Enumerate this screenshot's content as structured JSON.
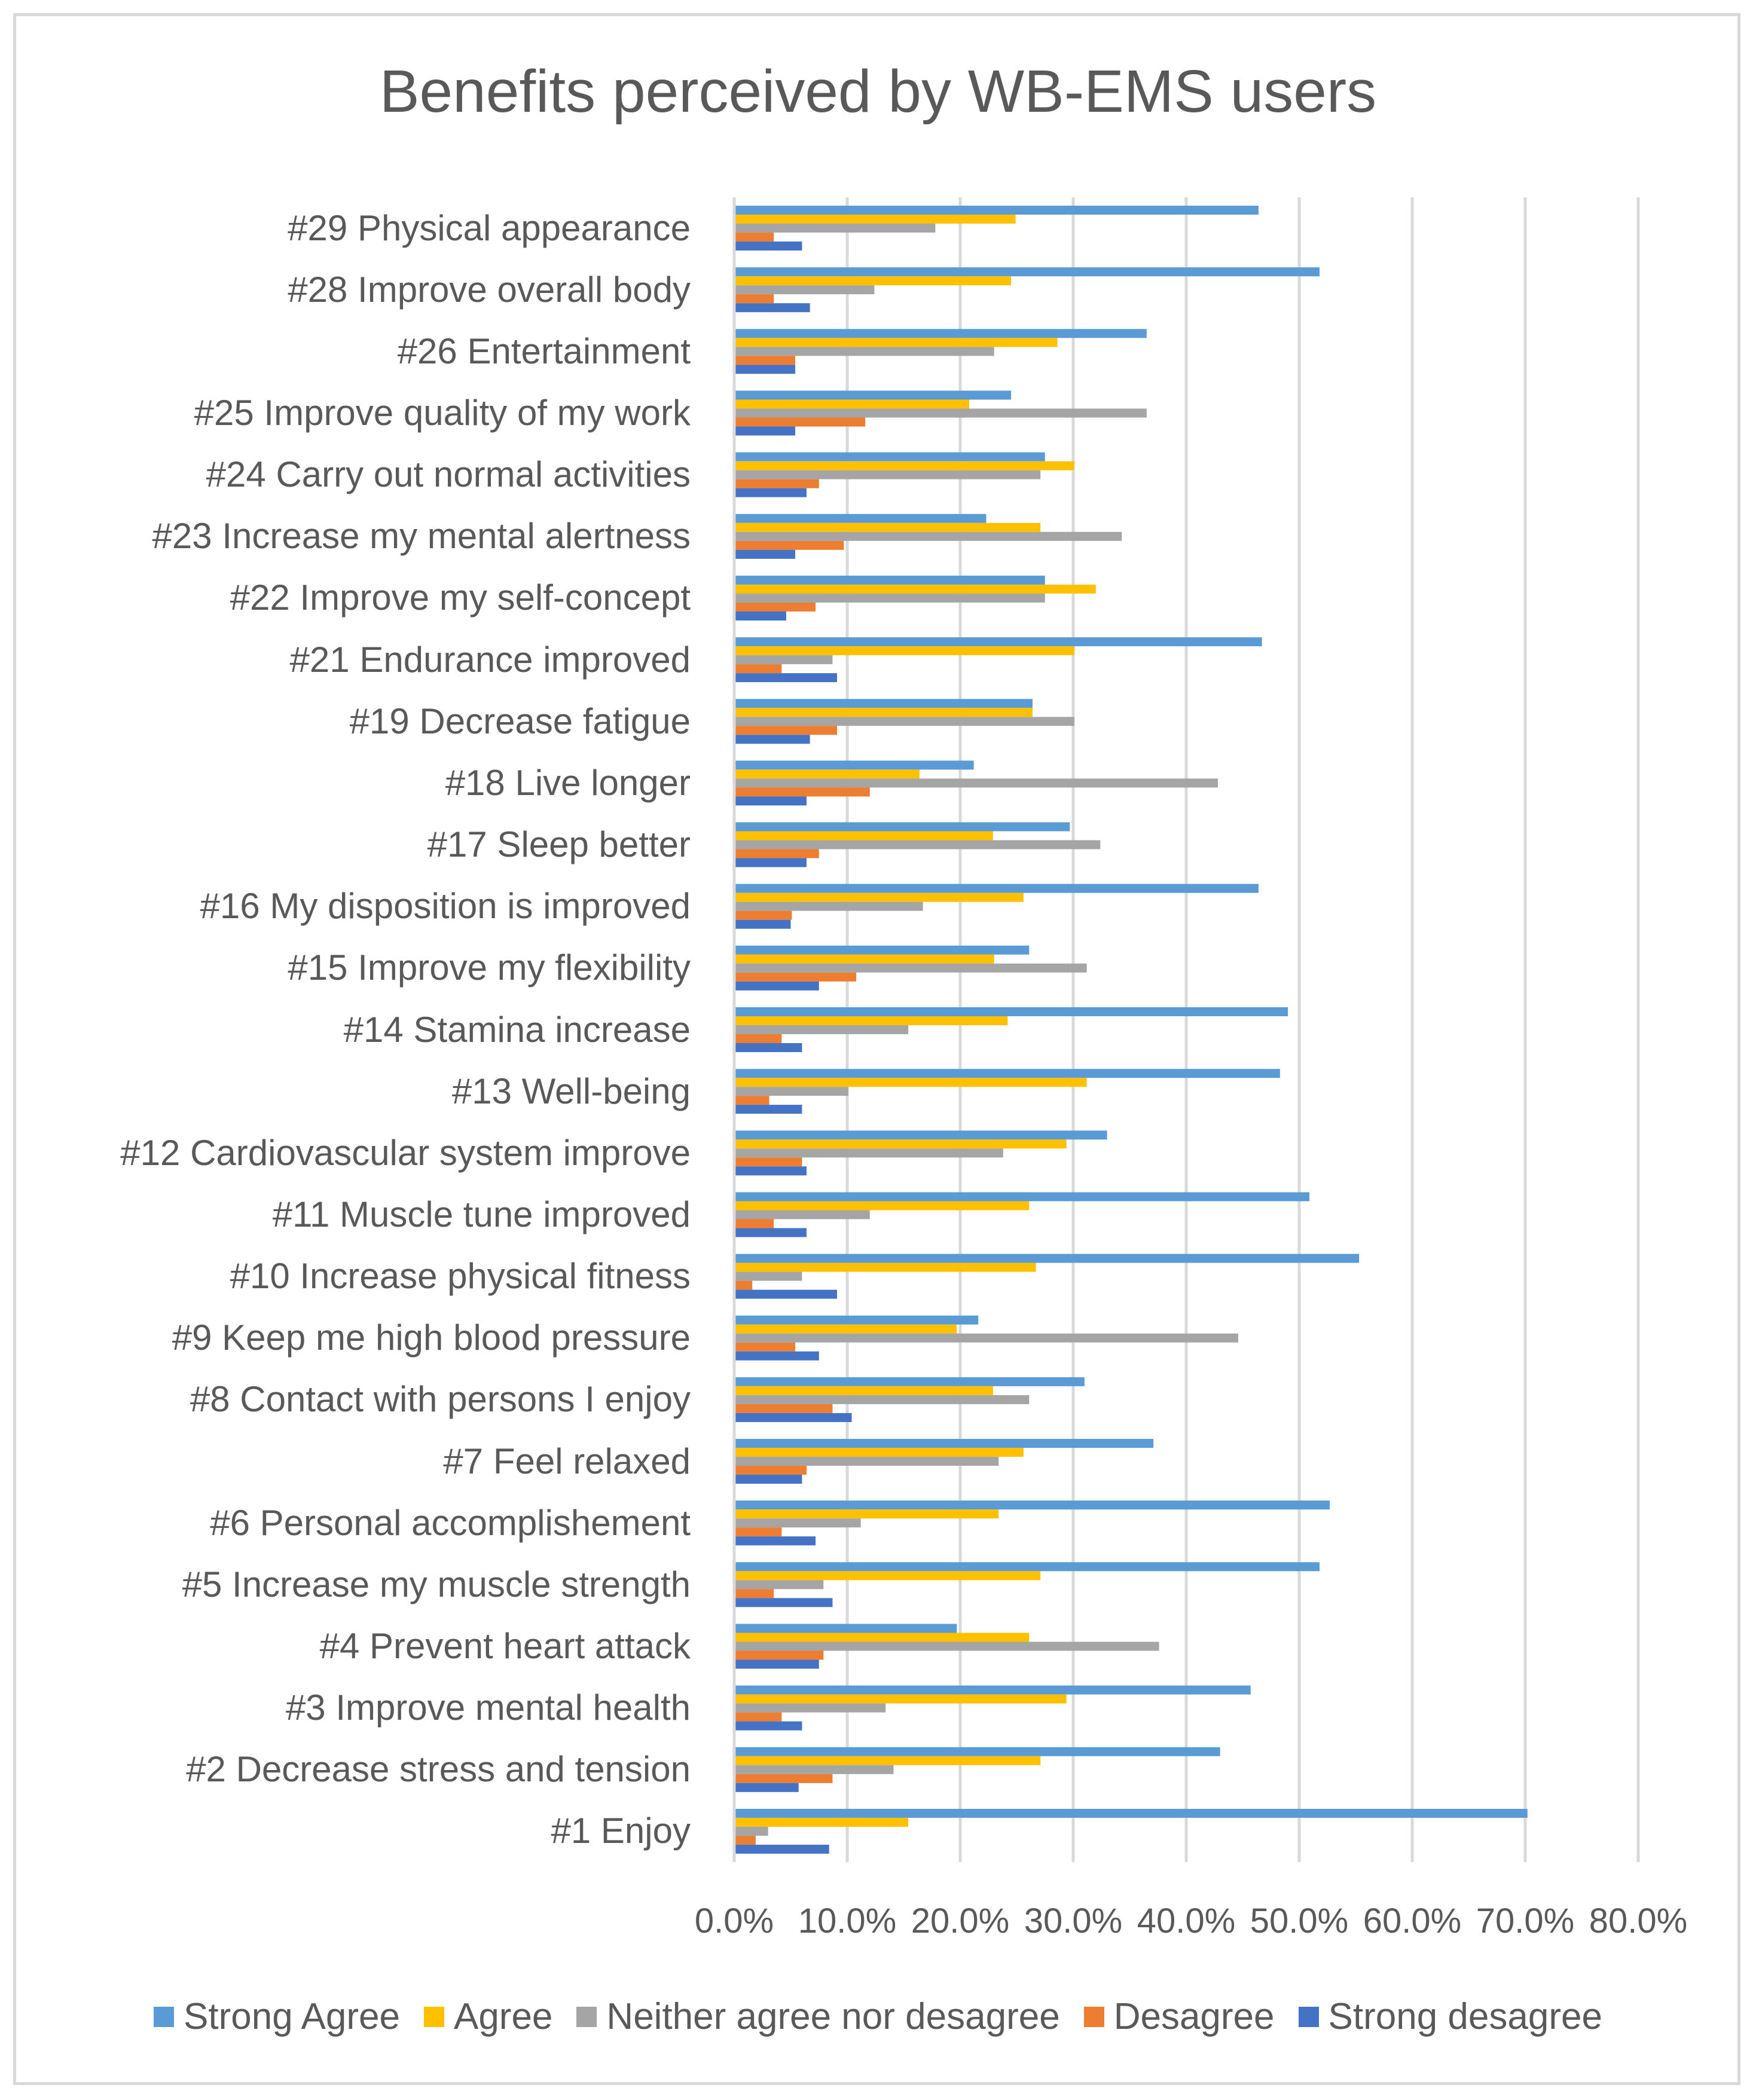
{
  "chart_data": {
    "type": "bar",
    "orientation": "horizontal",
    "title": "Benefits perceived by WB-EMS users",
    "xlabel": "",
    "ylabel": "",
    "xlim": [
      0,
      80
    ],
    "x_ticks": [
      "0.0%",
      "10.0%",
      "20.0%",
      "30.0%",
      "40.0%",
      "50.0%",
      "60.0%",
      "70.0%",
      "80.0%"
    ],
    "grid": true,
    "legend_position": "bottom",
    "categories": [
      "#29 Physical appearance",
      "#28 Improve overall body",
      "#26 Entertainment",
      "#25 Improve quality of my work",
      "#24 Carry out normal activities",
      "#23 Increase my mental alertness",
      "#22 Improve my self-concept",
      "#21 Endurance improved",
      "#19 Decrease fatigue",
      "#18 Live longer",
      "#17 Sleep better",
      "#16 My disposition is improved",
      "#15 Improve my flexibility",
      "#14 Stamina increase",
      "#13 Well-being",
      "#12 Cardiovascular system improve",
      "#11 Muscle tune improved",
      "#10 Increase physical fitness",
      "#9 Keep me high blood pressure",
      "#8 Contact with persons I enjoy",
      "#7 Feel relaxed",
      "#6 Personal accomplishement",
      "#5 Increase my muscle strength",
      "#4 Prevent heart attack",
      "#3 Improve mental health",
      "#2 Decrease stress and tension",
      "#1 Enjoy"
    ],
    "series": [
      {
        "name": "Strong Agree",
        "color": "#5b9bd5",
        "values": [
          46.4,
          51.8,
          36.5,
          24.5,
          27.5,
          22.3,
          27.5,
          46.7,
          26.4,
          21.2,
          29.7,
          46.4,
          26.1,
          49.0,
          48.3,
          33.0,
          50.9,
          55.3,
          21.6,
          31.0,
          37.1,
          52.7,
          51.8,
          19.7,
          45.7,
          43.0,
          70.2
        ]
      },
      {
        "name": "Agree",
        "color": "#ffc000",
        "values": [
          24.9,
          24.5,
          28.6,
          20.8,
          30.1,
          27.1,
          32.0,
          30.1,
          26.4,
          16.4,
          22.9,
          25.6,
          23.0,
          24.2,
          31.2,
          29.4,
          26.1,
          26.7,
          19.7,
          22.9,
          25.6,
          23.4,
          27.1,
          26.1,
          29.4,
          27.1,
          15.4
        ]
      },
      {
        "name": "Neither agree nor desagree",
        "color": "#a5a5a5",
        "values": [
          17.8,
          12.4,
          23.0,
          36.5,
          27.1,
          34.3,
          27.5,
          8.7,
          30.1,
          42.8,
          32.4,
          16.7,
          31.2,
          15.4,
          10.1,
          23.8,
          12.0,
          6.0,
          44.6,
          26.1,
          23.4,
          11.2,
          7.9,
          37.6,
          13.4,
          14.1,
          3.0
        ]
      },
      {
        "name": "Desagree",
        "color": "#ed7d31",
        "values": [
          3.5,
          3.5,
          5.4,
          11.6,
          7.5,
          9.7,
          7.2,
          4.2,
          9.1,
          12.0,
          7.5,
          5.1,
          10.8,
          4.2,
          3.1,
          6.0,
          3.5,
          1.6,
          5.4,
          8.7,
          6.4,
          4.2,
          3.5,
          7.9,
          4.2,
          8.7,
          1.9
        ]
      },
      {
        "name": "Strong desagree",
        "color": "#4472c4",
        "values": [
          6.0,
          6.7,
          5.4,
          5.4,
          6.4,
          5.4,
          4.6,
          9.1,
          6.7,
          6.4,
          6.4,
          5.0,
          7.5,
          6.0,
          6.0,
          6.4,
          6.4,
          9.1,
          7.5,
          10.4,
          6.0,
          7.2,
          8.7,
          7.5,
          6.0,
          5.7,
          8.4
        ]
      }
    ]
  }
}
